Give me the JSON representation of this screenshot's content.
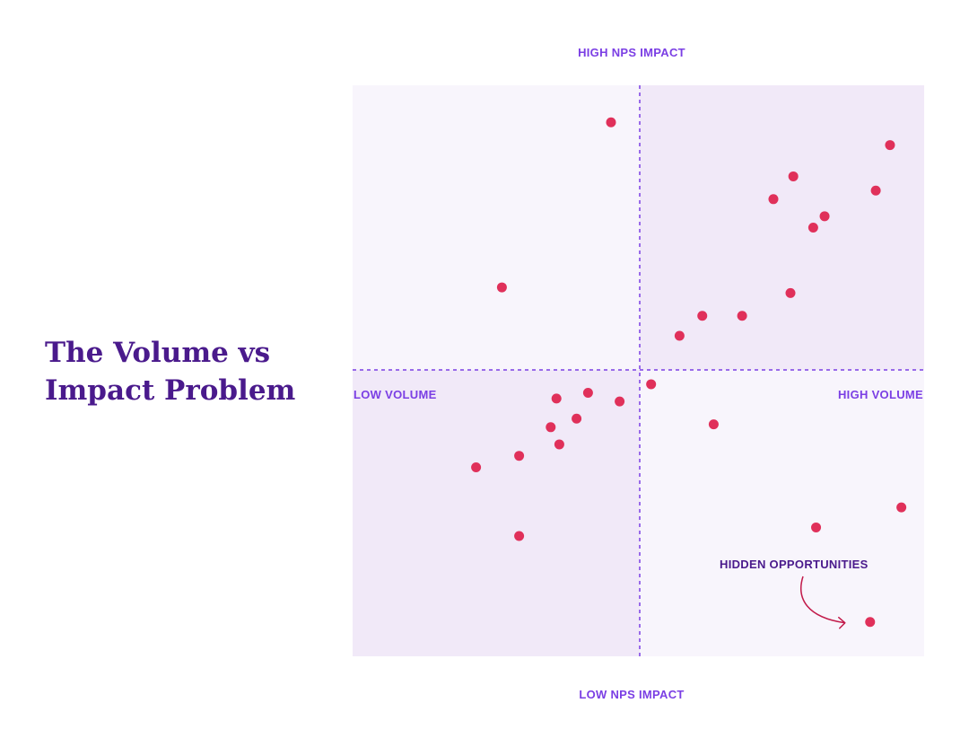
{
  "title": {
    "line1": "The Volume vs",
    "line2": "Impact Problem"
  },
  "colors": {
    "title": "#4a1a8c",
    "axis_label": "#7b3fe4",
    "point": "#e0305a",
    "quadrant_light": "#f8f5fc",
    "quadrant_dark": "#f1e9f8",
    "divider": "#7b3fe4",
    "annotation": "#4a1a8c",
    "arrow": "#c21a4a"
  },
  "chart_data": {
    "type": "scatter",
    "title": "The Volume vs Impact Problem",
    "xlabel_left": "LOW VOLUME",
    "xlabel_right": "HIGH VOLUME",
    "ylabel_top": "HIGH NPS IMPACT",
    "ylabel_bottom": "LOW NPS IMPACT",
    "grid": false,
    "quadrant_dividers": "dashed",
    "series": [
      {
        "points": [
          {
            "x": -0.1,
            "y": 0.87
          },
          {
            "x": -0.48,
            "y": 0.29
          },
          {
            "x": 0.14,
            "y": 0.12
          },
          {
            "x": 0.22,
            "y": 0.19
          },
          {
            "x": 0.36,
            "y": 0.19
          },
          {
            "x": 0.53,
            "y": 0.27
          },
          {
            "x": 0.47,
            "y": 0.6
          },
          {
            "x": 0.54,
            "y": 0.68
          },
          {
            "x": 0.61,
            "y": 0.5
          },
          {
            "x": 0.65,
            "y": 0.54
          },
          {
            "x": 0.83,
            "y": 0.63
          },
          {
            "x": 0.88,
            "y": 0.79
          },
          {
            "x": 0.04,
            "y": -0.05
          },
          {
            "x": 0.26,
            "y": -0.19
          },
          {
            "x": 0.62,
            "y": -0.55
          },
          {
            "x": 0.92,
            "y": -0.48
          },
          {
            "x": 0.81,
            "y": -0.88
          },
          {
            "x": -0.29,
            "y": -0.1
          },
          {
            "x": -0.18,
            "y": -0.08
          },
          {
            "x": -0.07,
            "y": -0.11
          },
          {
            "x": -0.22,
            "y": -0.17
          },
          {
            "x": -0.31,
            "y": -0.2
          },
          {
            "x": -0.28,
            "y": -0.26
          },
          {
            "x": -0.42,
            "y": -0.3
          },
          {
            "x": -0.57,
            "y": -0.34
          },
          {
            "x": -0.42,
            "y": -0.58
          }
        ]
      }
    ],
    "annotations": [
      {
        "text": "HIDDEN OPPORTUNITIES",
        "target": {
          "x": 0.81,
          "y": -0.88
        }
      }
    ],
    "xlim": [
      -1,
      1
    ],
    "ylim": [
      -1,
      1
    ]
  }
}
